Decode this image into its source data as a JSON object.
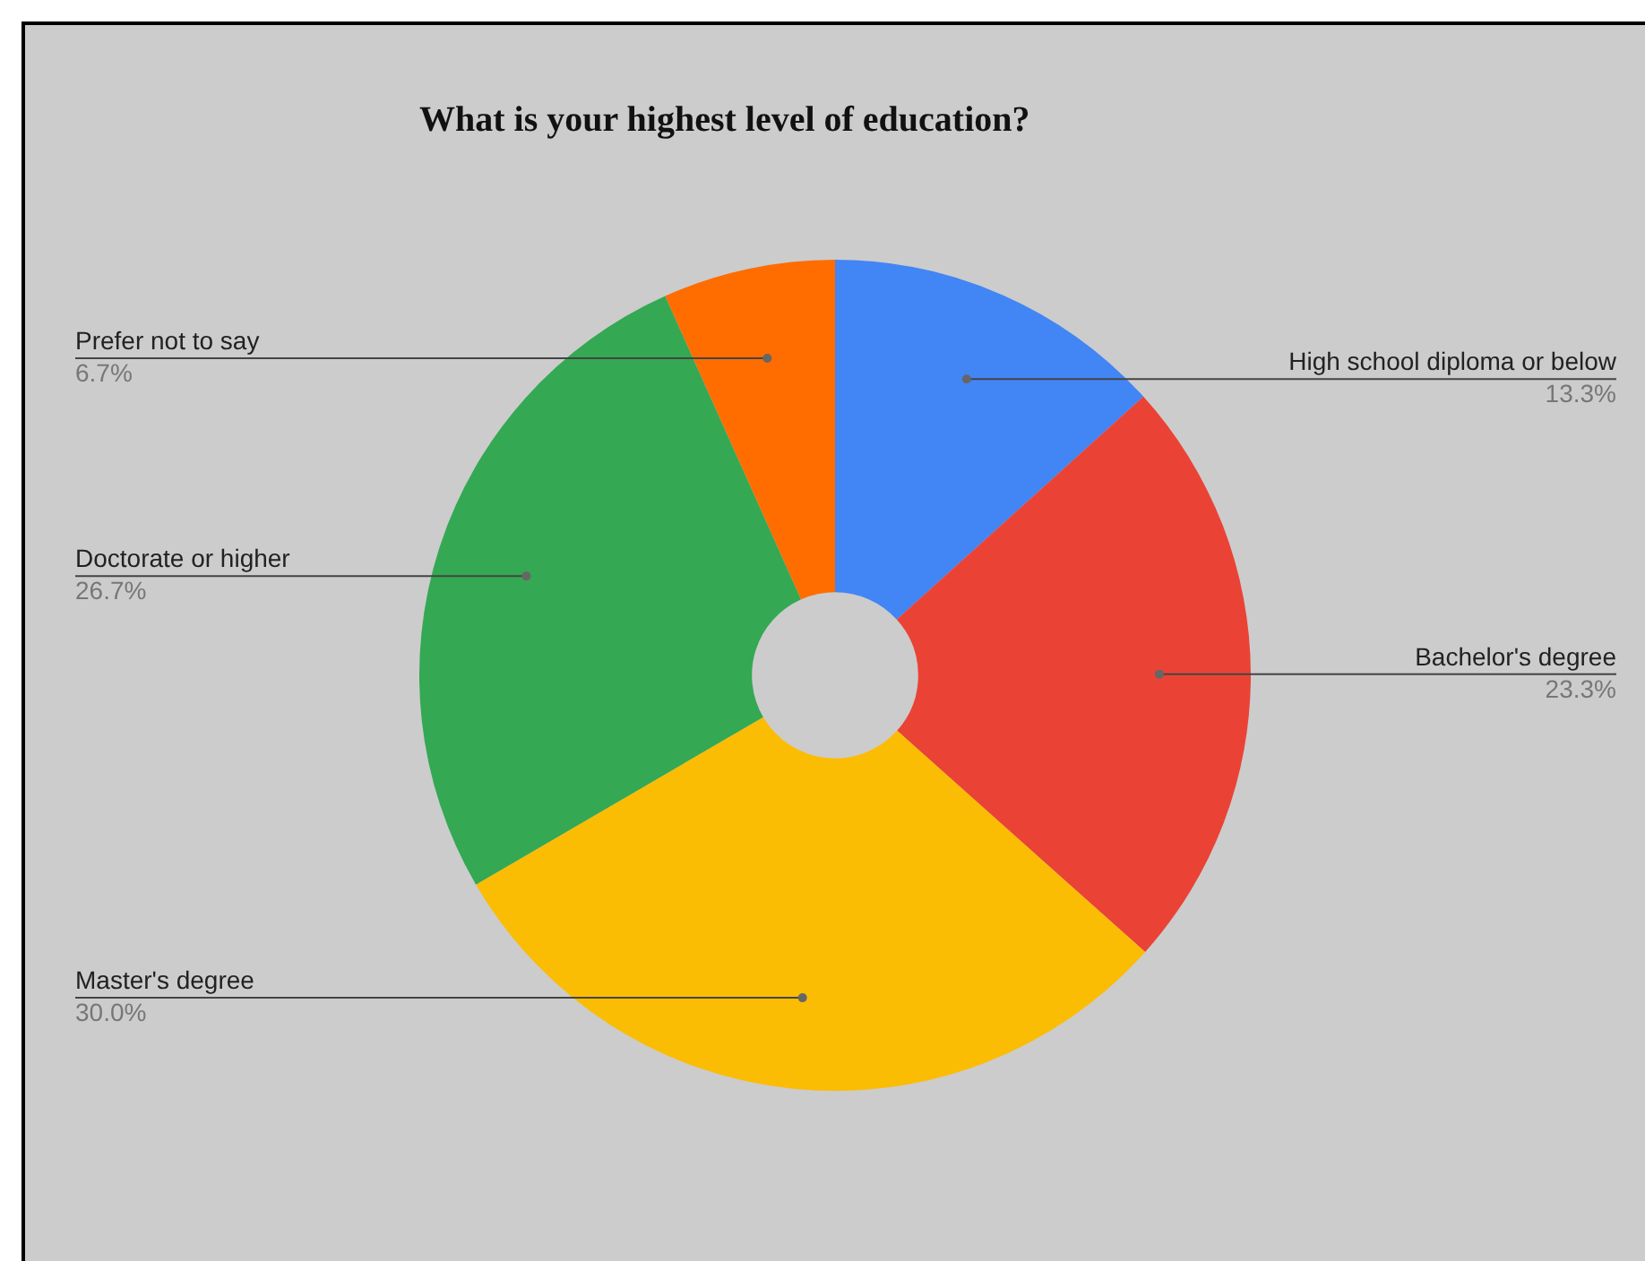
{
  "chart_data": {
    "type": "donut",
    "title": "What is your highest level of education?",
    "categories": [
      "High school diploma or below",
      "Bachelor's degree",
      "Master's degree",
      "Doctorate or higher",
      "Prefer not to say"
    ],
    "values": [
      13.3,
      23.3,
      30.0,
      26.7,
      6.7
    ],
    "value_labels": [
      "13.3%",
      "23.3%",
      "30.0%",
      "26.7%",
      "6.7%"
    ],
    "colors": [
      "#4285f4",
      "#ea4335",
      "#fbbc04",
      "#34a853",
      "#ff6d01"
    ],
    "legend": false
  }
}
